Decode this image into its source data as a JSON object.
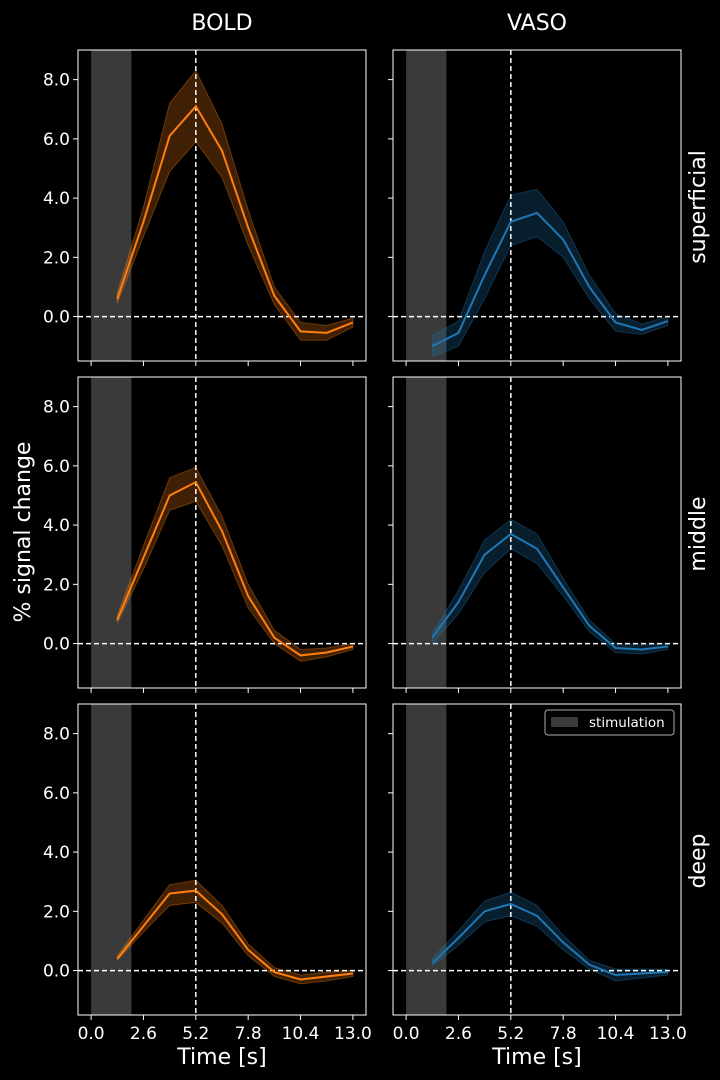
{
  "figure": {
    "ylabel": "% signal change",
    "columns": [
      "BOLD",
      "VASO"
    ],
    "rows": [
      "superficial",
      "middle",
      "deep"
    ],
    "xlabel": "Time [s]",
    "legend_label": "stimulation"
  },
  "chart_data": {
    "type": "line",
    "grid": false,
    "legend_position": "top-right",
    "xlim": [
      -0.65,
      13.65
    ],
    "ylim": [
      -1.5,
      9.0
    ],
    "x_ticks": [
      0.0,
      2.6,
      5.2,
      7.8,
      10.4,
      13.0
    ],
    "x_tick_labels": [
      "0.0",
      "2.6",
      "5.2",
      "7.8",
      "10.4",
      "13.0"
    ],
    "y_ticks": [
      0.0,
      2.0,
      4.0,
      6.0,
      8.0
    ],
    "y_tick_labels": [
      "0.0",
      "2.0",
      "4.0",
      "6.0",
      "8.0"
    ],
    "stimulation_window": [
      0.0,
      2.0
    ],
    "vertical_reference_x": 5.2,
    "horizontal_reference_y": 0.0,
    "x": [
      1.3,
      2.6,
      3.9,
      5.2,
      6.5,
      7.8,
      9.1,
      10.4,
      11.7,
      13.0
    ],
    "colors": {
      "BOLD": "#ff7f0e",
      "VASO": "#1f77b4",
      "stimulation": "#3a3a3a",
      "reference": "#ffffff"
    },
    "panels": [
      {
        "column": "BOLD",
        "row": "superficial",
        "mean": [
          0.6,
          3.2,
          6.1,
          7.1,
          5.6,
          3.0,
          0.7,
          -0.5,
          -0.55,
          -0.2
        ],
        "lower": [
          0.45,
          2.7,
          4.9,
          5.9,
          4.7,
          2.4,
          0.4,
          -0.8,
          -0.8,
          -0.35
        ],
        "upper": [
          0.8,
          3.7,
          7.2,
          8.3,
          6.5,
          3.6,
          1.0,
          -0.2,
          -0.3,
          -0.05
        ]
      },
      {
        "column": "VASO",
        "row": "superficial",
        "mean": [
          -1.0,
          -0.55,
          1.4,
          3.2,
          3.5,
          2.6,
          1.0,
          -0.2,
          -0.45,
          -0.15
        ],
        "lower": [
          -1.35,
          -1.0,
          0.6,
          2.4,
          2.7,
          2.0,
          0.6,
          -0.5,
          -0.6,
          -0.3
        ],
        "upper": [
          -0.65,
          -0.15,
          2.2,
          4.1,
          4.3,
          3.2,
          1.4,
          0.1,
          -0.25,
          0.0
        ]
      },
      {
        "column": "BOLD",
        "row": "middle",
        "mean": [
          0.8,
          2.9,
          5.0,
          5.45,
          3.8,
          1.6,
          0.2,
          -0.4,
          -0.3,
          -0.1
        ],
        "lower": [
          0.7,
          2.5,
          4.5,
          4.8,
          3.3,
          1.2,
          0.0,
          -0.6,
          -0.45,
          -0.2
        ],
        "upper": [
          0.95,
          3.3,
          5.6,
          5.95,
          4.3,
          2.0,
          0.45,
          -0.2,
          -0.15,
          0.0
        ]
      },
      {
        "column": "VASO",
        "row": "middle",
        "mean": [
          0.2,
          1.4,
          3.0,
          3.7,
          3.2,
          1.9,
          0.6,
          -0.15,
          -0.2,
          -0.1
        ],
        "lower": [
          0.0,
          1.0,
          2.4,
          3.2,
          2.7,
          1.6,
          0.4,
          -0.3,
          -0.35,
          -0.2
        ],
        "upper": [
          0.35,
          1.8,
          3.5,
          4.2,
          3.7,
          2.2,
          0.8,
          0.0,
          -0.05,
          0.0
        ]
      },
      {
        "column": "BOLD",
        "row": "deep",
        "mean": [
          0.4,
          1.5,
          2.6,
          2.7,
          1.9,
          0.7,
          -0.05,
          -0.3,
          -0.2,
          -0.1
        ],
        "lower": [
          0.35,
          1.3,
          2.2,
          2.3,
          1.6,
          0.5,
          -0.2,
          -0.45,
          -0.35,
          -0.2
        ],
        "upper": [
          0.5,
          1.7,
          2.9,
          3.05,
          2.2,
          0.9,
          0.1,
          -0.15,
          -0.05,
          0.0
        ]
      },
      {
        "column": "VASO",
        "row": "deep",
        "mean": [
          0.25,
          1.1,
          2.0,
          2.25,
          1.85,
          0.95,
          0.2,
          -0.15,
          -0.1,
          -0.05
        ],
        "lower": [
          0.15,
          0.85,
          1.65,
          1.85,
          1.5,
          0.7,
          0.05,
          -0.35,
          -0.25,
          -0.15
        ],
        "upper": [
          0.4,
          1.35,
          2.35,
          2.65,
          2.2,
          1.2,
          0.35,
          0.05,
          0.05,
          0.05
        ]
      }
    ]
  }
}
